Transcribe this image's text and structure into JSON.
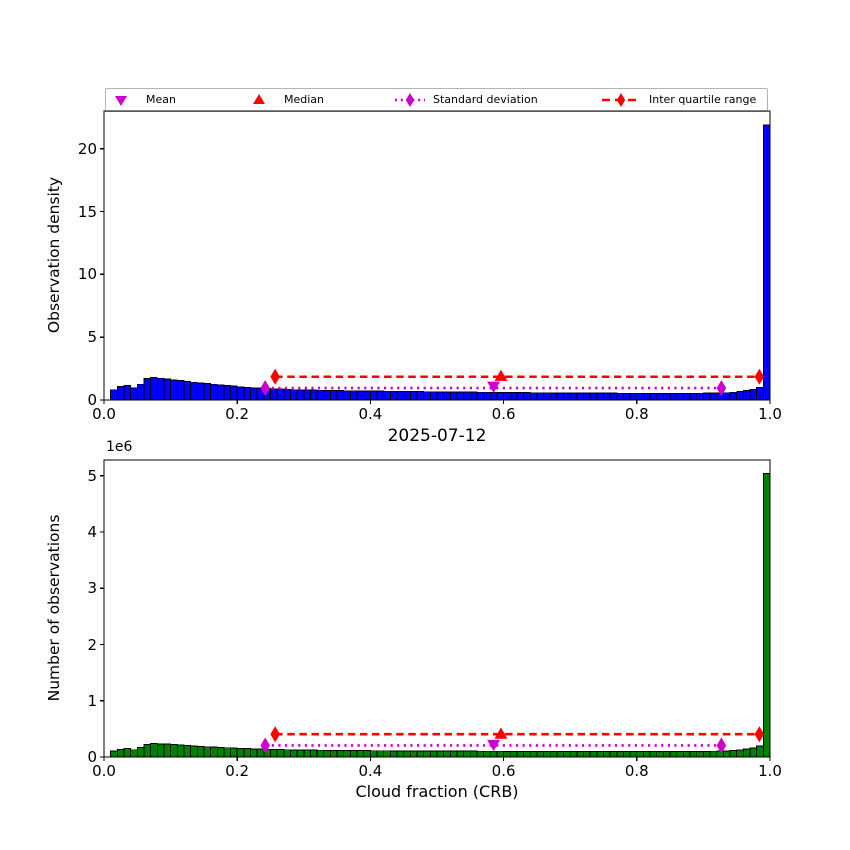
{
  "figure": {
    "title": "2025-07-12",
    "xlabel": "Cloud fraction (CRB)",
    "offset_text": "1e6"
  },
  "colors": {
    "top_bar": "#0000ff",
    "bottom_bar": "#008000",
    "bar_edge": "#000000",
    "mean": "#cc00cc",
    "median": "#ff0000",
    "std": "#cc00cc",
    "iqr": "#ff0000",
    "axis": "#000000"
  },
  "legend": {
    "items": [
      {
        "label": "Mean",
        "marker": "triangle-down",
        "color": "#cc00cc",
        "line": "none"
      },
      {
        "label": "Median",
        "marker": "triangle-up",
        "color": "#ff0000",
        "line": "none"
      },
      {
        "label": "Standard deviation",
        "marker": "thin-diamond",
        "color": "#cc00cc",
        "line": "dotted"
      },
      {
        "label": "Inter quartile range",
        "marker": "thin-diamond",
        "color": "#ff0000",
        "line": "dashed"
      }
    ]
  },
  "chart_data": [
    {
      "type": "bar",
      "panel": "top",
      "ylabel": "Observation density",
      "xlim": [
        0.0,
        1.0
      ],
      "ylim": [
        0,
        23
      ],
      "xticks": [
        0.0,
        0.2,
        0.4,
        0.6,
        0.8,
        1.0
      ],
      "xtick_labels": [
        "0.0",
        "0.2",
        "0.4",
        "0.6",
        "0.8",
        "1.0"
      ],
      "yticks": [
        0,
        5,
        10,
        15,
        20
      ],
      "ytick_labels": [
        "0",
        "5",
        "10",
        "15",
        "20"
      ],
      "bin_start": 0.01,
      "bin_width": 0.01,
      "bar_color": "#0000ff",
      "values": [
        0.82,
        1.06,
        1.14,
        0.95,
        1.25,
        1.72,
        1.8,
        1.73,
        1.67,
        1.6,
        1.54,
        1.47,
        1.41,
        1.35,
        1.3,
        1.25,
        1.2,
        1.15,
        1.1,
        1.05,
        1.0,
        0.97,
        0.94,
        0.91,
        0.88,
        0.86,
        0.84,
        0.82,
        0.81,
        0.8,
        0.79,
        0.78,
        0.77,
        0.76,
        0.75,
        0.74,
        0.74,
        0.73,
        0.72,
        0.71,
        0.71,
        0.7,
        0.69,
        0.69,
        0.68,
        0.67,
        0.67,
        0.66,
        0.66,
        0.65,
        0.65,
        0.64,
        0.64,
        0.63,
        0.63,
        0.62,
        0.62,
        0.61,
        0.61,
        0.6,
        0.6,
        0.59,
        0.59,
        0.58,
        0.58,
        0.58,
        0.57,
        0.57,
        0.57,
        0.56,
        0.56,
        0.56,
        0.55,
        0.55,
        0.55,
        0.55,
        0.54,
        0.54,
        0.54,
        0.54,
        0.54,
        0.53,
        0.53,
        0.53,
        0.53,
        0.53,
        0.53,
        0.54,
        0.54,
        0.55,
        0.56,
        0.57,
        0.58,
        0.62,
        0.68,
        0.75,
        0.85,
        1.0,
        21.9
      ],
      "overlays": {
        "mean": {
          "x": 0.585,
          "y": 1.1
        },
        "median": {
          "x": 0.596,
          "y": 1.88
        },
        "std_line": {
          "x1": 0.242,
          "x2": 0.927,
          "y": 0.95
        },
        "iqr_line": {
          "x1": 0.257,
          "x2": 0.984,
          "y": 1.85
        }
      }
    },
    {
      "type": "bar",
      "panel": "bottom",
      "ylabel": "Number of observations",
      "y_unit": "1e6",
      "xlim": [
        0.0,
        1.0
      ],
      "ylim": [
        0,
        5.28
      ],
      "xticks": [
        0.0,
        0.2,
        0.4,
        0.6,
        0.8,
        1.0
      ],
      "xtick_labels": [
        "0.0",
        "0.2",
        "0.4",
        "0.6",
        "0.8",
        "1.0"
      ],
      "yticks": [
        0,
        1,
        2,
        3,
        4,
        5
      ],
      "ytick_labels": [
        "0",
        "1",
        "2",
        "3",
        "4",
        "5"
      ],
      "bin_start": 0.01,
      "bin_width": 0.01,
      "bar_color": "#008000",
      "values": [
        0.105,
        0.135,
        0.15,
        0.128,
        0.168,
        0.225,
        0.238,
        0.232,
        0.228,
        0.22,
        0.213,
        0.205,
        0.198,
        0.19,
        0.183,
        0.177,
        0.171,
        0.165,
        0.159,
        0.154,
        0.149,
        0.145,
        0.141,
        0.137,
        0.134,
        0.131,
        0.128,
        0.126,
        0.124,
        0.122,
        0.121,
        0.12,
        0.119,
        0.118,
        0.117,
        0.116,
        0.115,
        0.114,
        0.113,
        0.112,
        0.112,
        0.111,
        0.11,
        0.11,
        0.109,
        0.108,
        0.108,
        0.107,
        0.107,
        0.106,
        0.106,
        0.105,
        0.105,
        0.104,
        0.104,
        0.103,
        0.103,
        0.102,
        0.102,
        0.101,
        0.101,
        0.1,
        0.1,
        0.1,
        0.099,
        0.099,
        0.099,
        0.098,
        0.098,
        0.098,
        0.098,
        0.097,
        0.097,
        0.097,
        0.097,
        0.097,
        0.096,
        0.096,
        0.096,
        0.096,
        0.096,
        0.096,
        0.096,
        0.096,
        0.096,
        0.097,
        0.097,
        0.098,
        0.099,
        0.101,
        0.103,
        0.106,
        0.11,
        0.116,
        0.126,
        0.14,
        0.16,
        0.195,
        5.04
      ],
      "overlays": {
        "mean": {
          "x": 0.585,
          "y": 0.225
        },
        "median": {
          "x": 0.596,
          "y": 0.405
        },
        "std_line": {
          "x1": 0.242,
          "x2": 0.927,
          "y": 0.205
        },
        "iqr_line": {
          "x1": 0.257,
          "x2": 0.984,
          "y": 0.405
        }
      }
    }
  ],
  "stats": {
    "mean": 0.585,
    "median": 0.596,
    "std_range": [
      0.242,
      0.927
    ],
    "iqr_range": [
      0.257,
      0.984
    ]
  }
}
